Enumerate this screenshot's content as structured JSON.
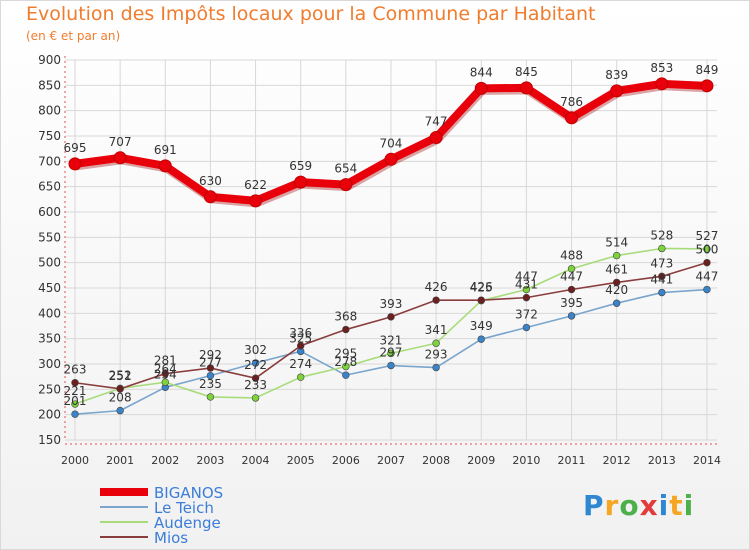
{
  "chart_data": {
    "type": "line",
    "title": "Evolution des Impôts locaux pour la Commune par Habitant",
    "subtitle": "(en € et par an)",
    "categories": [
      "2000",
      "2001",
      "2002",
      "2003",
      "2004",
      "2005",
      "2006",
      "2007",
      "2008",
      "2009",
      "2010",
      "2011",
      "2012",
      "2013",
      "2014"
    ],
    "ylim": [
      150,
      900
    ],
    "yticks": [
      150,
      200,
      250,
      300,
      350,
      400,
      450,
      500,
      550,
      600,
      650,
      700,
      750,
      800,
      850,
      900
    ],
    "grid": true,
    "legend_position": "bottom-left",
    "series": [
      {
        "name": "BIGANOS",
        "color": "#e8000b",
        "point_color": "#e8000b",
        "emphasis": true,
        "values": [
          695,
          707,
          691,
          630,
          622,
          659,
          654,
          704,
          747,
          844,
          845,
          786,
          839,
          853,
          849
        ]
      },
      {
        "name": "Le Teich",
        "color": "#7aa5cc",
        "point_color": "#3a83c8",
        "emphasis": false,
        "values": [
          201,
          208,
          254,
          277,
          302,
          325,
          278,
          297,
          293,
          349,
          372,
          395,
          420,
          441,
          447
        ]
      },
      {
        "name": "Audenge",
        "color": "#a8dc7a",
        "point_color": "#7ed23c",
        "emphasis": false,
        "values": [
          221,
          252,
          264,
          235,
          233,
          274,
          295,
          321,
          341,
          425,
          447,
          488,
          514,
          528,
          527
        ]
      },
      {
        "name": "Mios",
        "color": "#8a3d3d",
        "point_color": "#6b1f1f",
        "emphasis": false,
        "values": [
          263,
          251,
          281,
          292,
          272,
          336,
          368,
          393,
          426,
          426,
          431,
          447,
          461,
          473,
          500
        ]
      }
    ]
  },
  "logo": {
    "text": "Proxiti"
  }
}
